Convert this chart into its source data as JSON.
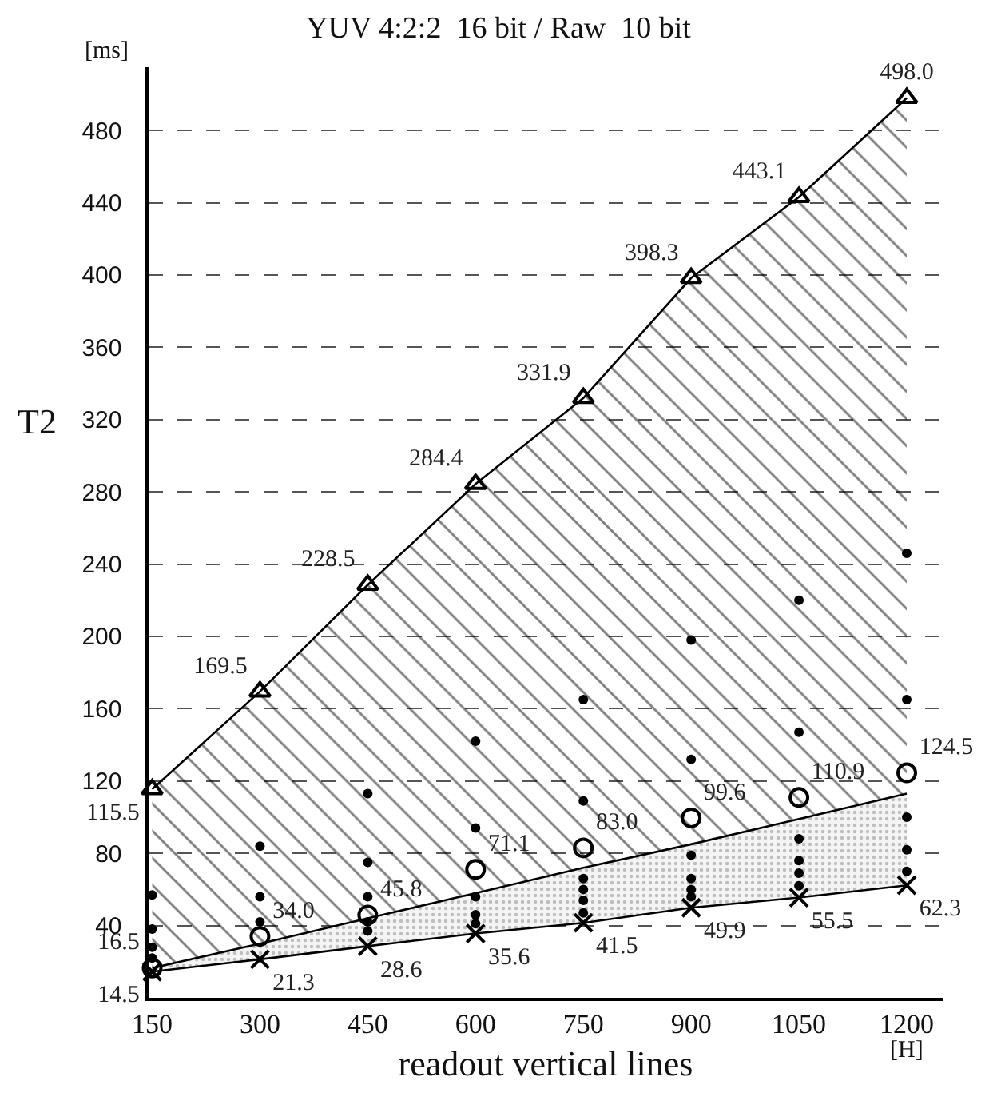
{
  "chart_data": {
    "type": "scatter",
    "title": "YUV 4:2:2  16 bit / Raw  10 bit",
    "xlabel": "readout vertical lines",
    "ylabel": "T2",
    "annotations": [
      "[ms]",
      "[H]"
    ],
    "xlim": [
      145,
      1250
    ],
    "xticks": [
      150,
      300,
      450,
      600,
      750,
      900,
      1050,
      1200
    ],
    "ylim": [
      0,
      515
    ],
    "yticks": [
      40,
      80,
      120,
      160,
      200,
      240,
      280,
      320,
      360,
      400,
      440,
      480
    ],
    "grid": "y",
    "series": [
      {
        "type": "line",
        "marker": "none",
        "color": "#000000",
        "x": [
          150,
          300,
          450,
          600,
          750,
          900,
          1050,
          1200
        ],
        "values": [
          16.5,
          30,
          44,
          58,
          72,
          85,
          99,
          113
        ],
        "lower": [
          14.5,
          21.3,
          28.6,
          35.6,
          41.5,
          49.9,
          55.5,
          62.3
        ],
        "upper": [
          16.5,
          30,
          44,
          58,
          72,
          85,
          99,
          113
        ]
      },
      {
        "type": "line",
        "marker": "cross",
        "color": "#000000",
        "x": [
          150,
          300,
          450,
          600,
          750,
          900,
          1050,
          1200
        ],
        "values": [
          14.5,
          21.3,
          28.6,
          35.6,
          41.5,
          49.9,
          55.5,
          62.3
        ],
        "value_labels": [
          "14.5",
          "21.3",
          "28.6",
          "35.6",
          "41.5",
          "49.9",
          "55.5",
          "62.3"
        ]
      },
      {
        "type": "line",
        "marker": "triangle",
        "color": "#000000",
        "x": [
          150,
          300,
          450,
          600,
          750,
          900,
          1050,
          1200
        ],
        "values": [
          115.5,
          169.5,
          228.5,
          284.4,
          331.9,
          398.3,
          443.1,
          498.0
        ],
        "lower": [
          16.5,
          30,
          44,
          58,
          72,
          85,
          99,
          113
        ],
        "upper": [
          115.5,
          169.5,
          228.5,
          284.4,
          331.9,
          398.3,
          443.1,
          498.0
        ],
        "value_labels": [
          "115.5",
          "169.5",
          "228.5",
          "284.4",
          "331.9",
          "398.3",
          "443.1",
          "498.0"
        ]
      },
      {
        "type": "scatter",
        "marker": "circle",
        "color": "#000000",
        "x": [
          150,
          300,
          450,
          600,
          750,
          900,
          1050,
          1200
        ],
        "values": [
          16.5,
          34.0,
          45.8,
          71.1,
          83.0,
          99.6,
          110.9,
          124.5
        ],
        "value_labels": [
          "16.5",
          "34.0",
          "45.8",
          "71.1",
          "83.0",
          "99.6",
          "110.9",
          "124.5"
        ]
      },
      {
        "marker": "circle",
        "color": "#000000",
        "x": [
          150,
          150,
          150,
          150,
          300,
          300,
          300,
          450,
          450,
          450,
          450,
          450,
          600,
          600,
          600,
          600,
          600,
          750,
          750,
          750,
          750,
          750,
          750,
          900,
          900,
          900,
          900,
          900,
          900,
          1050,
          1050,
          1050,
          1050,
          1050,
          1050,
          1200,
          1200,
          1200,
          1200,
          1200
        ],
        "values": [
          57,
          38,
          28,
          22,
          84,
          56,
          42,
          113,
          75,
          56,
          42,
          37,
          142,
          94,
          56,
          46,
          41,
          165,
          109,
          66,
          60,
          54,
          47,
          198,
          132,
          79,
          66,
          60,
          56,
          220,
          147,
          88,
          76,
          69,
          62,
          246,
          165,
          100,
          82,
          70
        ]
      }
    ]
  }
}
